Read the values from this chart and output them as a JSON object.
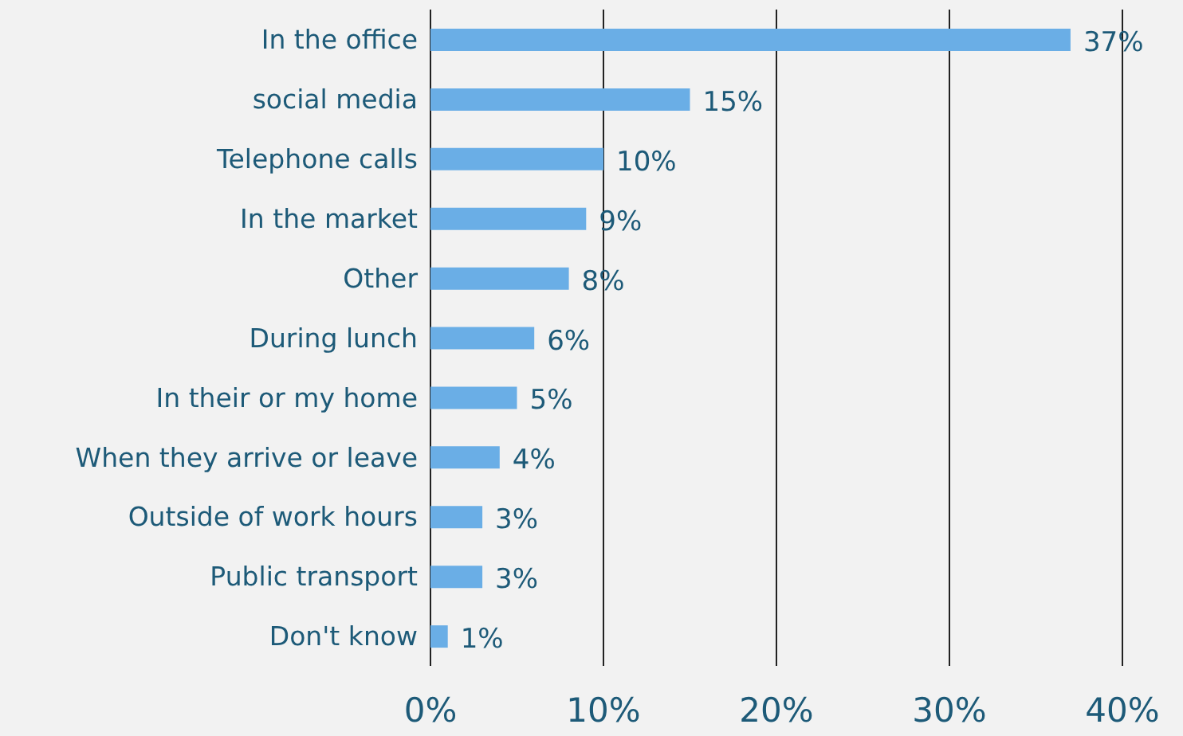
{
  "chart_data": {
    "type": "bar",
    "orientation": "horizontal",
    "categories": [
      "In the office",
      "social media",
      "Telephone calls",
      "In the market",
      "Other",
      "During lunch",
      "In their or my home",
      "When they arrive or leave",
      "Outside of work hours",
      "Public transport",
      "Don't know"
    ],
    "values": [
      37,
      15,
      10,
      9,
      8,
      6,
      5,
      4,
      3,
      3,
      1
    ],
    "value_labels": [
      "37%",
      "15%",
      "10%",
      "9%",
      "8%",
      "6%",
      "5%",
      "4%",
      "3%",
      "3%",
      "1%"
    ],
    "color": "#6aaee6",
    "xlim": [
      0,
      40
    ],
    "xticks": [
      {
        "value": 0,
        "label": "0%"
      },
      {
        "value": 10,
        "label": "10%"
      },
      {
        "value": 20,
        "label": "20%"
      },
      {
        "value": 30,
        "label": "30%"
      },
      {
        "value": 40,
        "label": "40%"
      }
    ],
    "grid": "x"
  }
}
